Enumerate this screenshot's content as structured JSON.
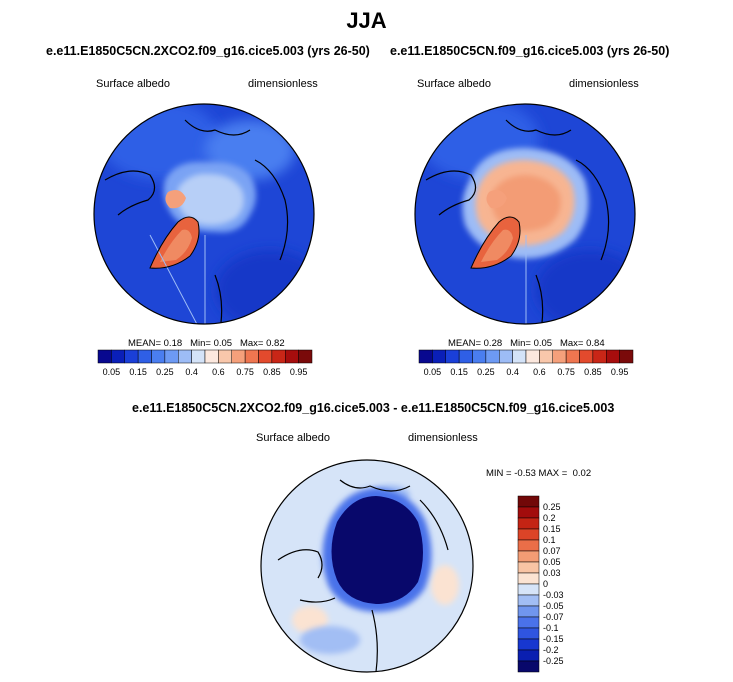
{
  "figure": {
    "title": "JJA",
    "diff_title": "e.e11.E1850C5CN.2XCO2.f09_g16.cice5.003 - e.e11.E1850C5CN.f09_g16.cice5.003"
  },
  "palettes": {
    "seq": [
      "#08088f",
      "#0a1fb8",
      "#1a3fd8",
      "#2f5fe6",
      "#4a7ef0",
      "#6d9af4",
      "#9dbcf6",
      "#d4e3f8",
      "#fce8de",
      "#f9c7ab",
      "#f5a07b",
      "#ef7650",
      "#e34a2d",
      "#c92617",
      "#a70d0d",
      "#7a0a0a"
    ],
    "diff": [
      "#08086b",
      "#0a1fb0",
      "#1737d0",
      "#2f55e0",
      "#4a72ea",
      "#7096ee",
      "#a2bef4",
      "#d6e4f8",
      "#fbe3d2",
      "#f8c4a4",
      "#f39c74",
      "#ea6e48",
      "#dc4427",
      "#c42414",
      "#a20c0c",
      "#720808"
    ]
  },
  "chart_data": [
    {
      "type": "heatmap",
      "id": "left",
      "title": "e.e11.E1850C5CN.2XCO2.f09_g16.cice5.003 (yrs 26-50)",
      "variable": "Surface albedo",
      "units": "dimensionless",
      "stats": {
        "mean_label": "MEAN=",
        "mean": "0.18",
        "min_label": "Min=",
        "min": "0.05",
        "max_label": "Max=",
        "max": "0.82"
      },
      "colorbar": {
        "orientation": "horizontal",
        "labels": [
          "0.05",
          "0.15",
          "0.25",
          "0.4",
          "0.6",
          "0.75",
          "0.85",
          "0.95"
        ]
      }
    },
    {
      "type": "heatmap",
      "id": "right",
      "title": "e.e11.E1850C5CN.f09_g16.cice5.003 (yrs 26-50)",
      "variable": "Surface albedo",
      "units": "dimensionless",
      "stats": {
        "mean_label": "MEAN=",
        "mean": "0.28",
        "min_label": "Min=",
        "min": "0.05",
        "max_label": "Max=",
        "max": "0.84"
      },
      "colorbar": {
        "orientation": "horizontal",
        "labels": [
          "0.05",
          "0.15",
          "0.25",
          "0.4",
          "0.6",
          "0.75",
          "0.85",
          "0.95"
        ]
      }
    },
    {
      "type": "heatmap",
      "id": "diff",
      "title": "e.e11.E1850C5CN.2XCO2.f09_g16.cice5.003 - e.e11.E1850C5CN.f09_g16.cice5.003",
      "variable": "Surface albedo",
      "units": "dimensionless",
      "stats": {
        "min_label": "MIN =",
        "min": "-0.53",
        "max_label": "MAX =",
        "max": "0.02"
      },
      "colorbar": {
        "orientation": "vertical",
        "labels": [
          "0.25",
          "0.2",
          "0.15",
          "0.1",
          "0.07",
          "0.05",
          "0.03",
          "0",
          "-0.03",
          "-0.05",
          "-0.07",
          "-0.1",
          "-0.15",
          "-0.2",
          "-0.25"
        ]
      }
    }
  ]
}
